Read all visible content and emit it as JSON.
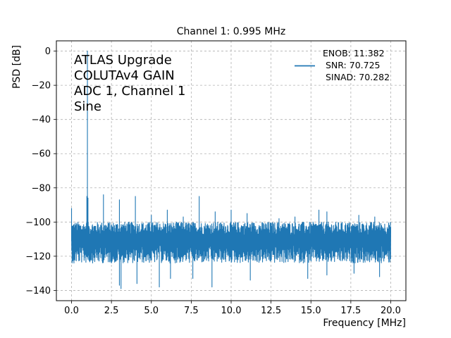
{
  "chart_data": {
    "type": "line",
    "title": "Channel 1: 0.995 MHz",
    "xlabel": "Frequency [MHz]",
    "ylabel": "PSD [dB]",
    "xlim": [
      -0.95,
      20.95
    ],
    "ylim": [
      -146,
      6
    ],
    "xticks": [
      0,
      2.5,
      5,
      7.5,
      10,
      12.5,
      15,
      17.5,
      20
    ],
    "xtick_labels": [
      "0.0",
      "2.5",
      "5.0",
      "7.5",
      "10.0",
      "12.5",
      "15.0",
      "17.5",
      "20.0"
    ],
    "yticks": [
      0,
      -20,
      -40,
      -60,
      -80,
      -100,
      -120,
      -140
    ],
    "ytick_labels": [
      "0",
      "−20",
      "−40",
      "−60",
      "−80",
      "−100",
      "−120",
      "−140"
    ],
    "grid": true,
    "legend_position": "top-right",
    "annotation": [
      "ATLAS Upgrade",
      "COLUTAv4 GAIN",
      "ADC 1, Channel 1",
      "Sine"
    ],
    "series": [
      {
        "name": "ENOB: 11.382\n SNR: 70.725\n SINAD: 70.282",
        "legend_lines": [
          "ENOB: 11.382",
          " SNR: 70.725",
          " SINAD: 70.282"
        ],
        "color": "#1f77b4",
        "noise_floor_db": -111,
        "noise_spread_db": [
          -124,
          -100
        ],
        "peaks": [
          {
            "x": 0.0,
            "y": -92
          },
          {
            "x": 0.995,
            "y": 0
          },
          {
            "x": 0.96,
            "y": -85
          },
          {
            "x": 1.03,
            "y": -86
          },
          {
            "x": 2.0,
            "y": -84
          },
          {
            "x": 3.0,
            "y": -87
          },
          {
            "x": 4.0,
            "y": -85
          },
          {
            "x": 5.0,
            "y": -96
          },
          {
            "x": 6.0,
            "y": -93
          },
          {
            "x": 7.0,
            "y": -97
          },
          {
            "x": 8.0,
            "y": -85
          },
          {
            "x": 9.0,
            "y": -94
          },
          {
            "x": 10.0,
            "y": -93
          },
          {
            "x": 11.0,
            "y": -95
          },
          {
            "x": 13.0,
            "y": -98
          },
          {
            "x": 14.0,
            "y": -97
          },
          {
            "x": 15.5,
            "y": -93
          },
          {
            "x": 16.0,
            "y": -94
          },
          {
            "x": 18.0,
            "y": -96
          },
          {
            "x": 19.0,
            "y": -97
          }
        ],
        "dips": [
          {
            "x": 0.15,
            "y": -124
          },
          {
            "x": 3.0,
            "y": -137
          },
          {
            "x": 3.1,
            "y": -139
          },
          {
            "x": 4.1,
            "y": -136
          },
          {
            "x": 5.5,
            "y": -138
          },
          {
            "x": 6.2,
            "y": -133
          },
          {
            "x": 7.6,
            "y": -133
          },
          {
            "x": 8.8,
            "y": -138
          },
          {
            "x": 11.2,
            "y": -134
          },
          {
            "x": 14.8,
            "y": -133
          },
          {
            "x": 16.0,
            "y": -131
          },
          {
            "x": 17.7,
            "y": -130
          },
          {
            "x": 19.3,
            "y": -132
          }
        ],
        "x_range": [
          0,
          20
        ]
      }
    ]
  }
}
